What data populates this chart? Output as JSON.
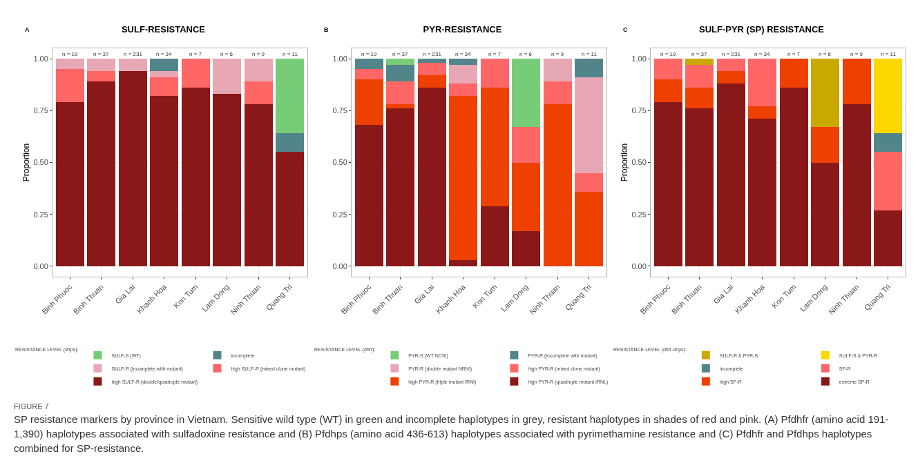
{
  "chart_data": [
    {
      "type": "bar",
      "stacked": true,
      "title": "SULF-RESISTANCE",
      "ylabel": "Proportion",
      "legend_title": "RESISTANCE LEVEL (dhps):",
      "legend": "bottom",
      "grid": true,
      "categories": [
        "Binh Phuoc",
        "Binh Thuan",
        "Gia Lai",
        "Khanh Hoa",
        "Kon Tum",
        "Lam Dong",
        "Ninh Thuan",
        "Quang Tri"
      ],
      "ylim": [
        -0.05,
        1.05
      ],
      "yticks": [
        {
          "value": 0,
          "label": "0.00"
        },
        {
          "value": 0.25,
          "label": "0.25"
        },
        {
          "value": 0.5,
          "label": "0.50"
        },
        {
          "value": 0.75,
          "label": "0.75"
        },
        {
          "value": 1,
          "label": "1.00"
        }
      ],
      "series": [
        {
          "name": "high SULF-R (double/quadruple mutant)",
          "color": "#8b1818",
          "values": [
            0.79,
            0.89,
            0.94,
            0.82,
            0.86,
            0.83,
            0.78,
            0.55
          ]
        },
        {
          "name": "high SULF-R (mixed clone mutant)",
          "color": "#ff6666",
          "values": [
            0.16,
            0.05,
            0,
            0.09,
            0.14,
            0,
            0.11,
            0
          ]
        },
        {
          "name": "SULF-R (incomplete with mutant)",
          "color": "#e8a7b5",
          "values": [
            0.05,
            0.06,
            0.06,
            0.03,
            0,
            0.17,
            0.11,
            0
          ]
        },
        {
          "name": "incomplete",
          "color": "#52858a",
          "values": [
            0,
            0,
            0,
            0.06,
            0,
            0,
            0,
            0.09
          ]
        },
        {
          "name": "SULF-S (WT)",
          "color": "#77cc77",
          "values": [
            0,
            0,
            0,
            0,
            0,
            0,
            0,
            0.36
          ]
        }
      ],
      "annotations": [
        "A",
        {
          "text": "n = 19",
          "x": "Binh Phuoc",
          "y": 1
        },
        {
          "text": "n = 37",
          "x": "Binh Thuan",
          "y": 1
        },
        {
          "text": "n = 231",
          "x": "Gia Lai",
          "y": 1
        },
        {
          "text": "n = 34",
          "x": "Khanh Hoa",
          "y": 1
        },
        {
          "text": "n = 7",
          "x": "Kon Tum",
          "y": 1
        },
        {
          "text": "n = 6",
          "x": "Lam Dong",
          "y": 1
        },
        {
          "text": "n = 9",
          "x": "Ninh Thuan",
          "y": 1
        },
        {
          "text": "n = 11",
          "x": "Quang Tri",
          "y": 1
        },
        "FIGURE 7",
        "SP resistance markers by province in Vietnam. Sensitive wild type (WT) in green and incomplete haplotypes in grey, resistant haplotypes in shades of red and pink. (A) Pfdhfr (amino acid 191-1,390) haplotypes associated with sulfadoxine resistance and (B) Pfdhps (amino acid 436-613) haplotypes associated with pyrimethamine resistance and (C) Pfdhfr and Pfdhps haplotypes combined for SP-resistance."
      ]
    },
    {
      "type": "bar",
      "stacked": true,
      "title": "PYR-RESISTANCE",
      "legend_title": "RESISTANCE LEVEL (dhfr):",
      "legend": "bottom",
      "grid": true,
      "categories": [
        "Binh Phuoc",
        "Binh Thuan",
        "Gia Lai",
        "Khanh Hoa",
        "Kon Tum",
        "Lam Dong",
        "Ninh Thuan",
        "Quang Tri"
      ],
      "ylim": [
        -0.05,
        1.05
      ],
      "yticks": [
        {
          "value": 0,
          "label": "0.00"
        },
        {
          "value": 0.25,
          "label": "0.25"
        },
        {
          "value": 0.5,
          "label": "0.50"
        },
        {
          "value": 0.75,
          "label": "0.75"
        },
        {
          "value": 1,
          "label": "1.00"
        }
      ],
      "series": [
        {
          "name": "high PYR-R (quadruple mutant IRNL)",
          "color": "#8b1818",
          "values": [
            0.68,
            0.76,
            0.86,
            0.03,
            0.29,
            0.17,
            0,
            0
          ]
        },
        {
          "name": "high PYR-R (triple mutant IRNI)",
          "color": "#ee4000",
          "values": [
            0.22,
            0.02,
            0.06,
            0.79,
            0.57,
            0.33,
            0.78,
            0.36
          ]
        },
        {
          "name": "high PYR-R (mixed clone mutant)",
          "color": "#ff6666",
          "values": [
            0.05,
            0.11,
            0.06,
            0.06,
            0.14,
            0.17,
            0.11,
            0.09
          ]
        },
        {
          "name": "PYR-R (double mutant NRNI)",
          "color": "#e8a7b5",
          "values": [
            0,
            0,
            0,
            0.09,
            0,
            0,
            0.11,
            0.46
          ]
        },
        {
          "name": "PYR-R (incomplete with mutant)",
          "color": "#52858a",
          "values": [
            0.05,
            0.08,
            0.02,
            0.03,
            0,
            0,
            0,
            0.09
          ]
        },
        {
          "name": "PYR-S (WT NCSI)",
          "color": "#77cc77",
          "values": [
            0,
            0.03,
            0,
            0,
            0,
            0.33,
            0,
            0
          ]
        }
      ],
      "annotations": [
        "B",
        {
          "text": "n = 19",
          "x": "Binh Phuoc",
          "y": 1
        },
        {
          "text": "n = 37",
          "x": "Binh Thuan",
          "y": 1
        },
        {
          "text": "n = 231",
          "x": "Gia Lai",
          "y": 1
        },
        {
          "text": "n = 34",
          "x": "Khanh Hoa",
          "y": 1
        },
        {
          "text": "n = 7",
          "x": "Kon Tum",
          "y": 1
        },
        {
          "text": "n = 6",
          "x": "Lam Dong",
          "y": 1
        },
        {
          "text": "n = 9",
          "x": "Ninh Thuan",
          "y": 1
        },
        {
          "text": "n = 11",
          "x": "Quang Tri",
          "y": 1
        }
      ]
    },
    {
      "type": "bar",
      "stacked": true,
      "title": "SULF-PYR (SP) RESISTANCE",
      "ylabel": "Proportion",
      "legend_title": "RESISTANCE LEVEL (dhfr-dhps):",
      "legend": "bottom",
      "grid": true,
      "categories": [
        "Binh Phuoc",
        "Binh Thuan",
        "Gia Lai",
        "Khanh Hoa",
        "Kon Tum",
        "Lam Dong",
        "Ninh Thuan",
        "Quang Tri"
      ],
      "ylim": [
        -0.05,
        1.05
      ],
      "yticks": [
        {
          "value": 0,
          "label": "0.00"
        },
        {
          "value": 0.25,
          "label": "0.25"
        },
        {
          "value": 0.5,
          "label": "0.50"
        },
        {
          "value": 0.75,
          "label": "0.75"
        },
        {
          "value": 1,
          "label": "1.00"
        }
      ],
      "series": [
        {
          "name": "extreme SP-R",
          "color": "#8b1818",
          "values": [
            0.79,
            0.76,
            0.88,
            0.71,
            0.86,
            0.5,
            0.78,
            0.27
          ]
        },
        {
          "name": "high SP-R",
          "color": "#ee4000",
          "values": [
            0.11,
            0.1,
            0.06,
            0.06,
            0.14,
            0.17,
            0.22,
            0
          ]
        },
        {
          "name": "SP-R",
          "color": "#ff6666",
          "values": [
            0.1,
            0.11,
            0.06,
            0.23,
            0,
            0,
            0,
            0.28
          ]
        },
        {
          "name": "incomplete",
          "color": "#52858a",
          "values": [
            0,
            0,
            0,
            0,
            0,
            0,
            0,
            0.09
          ]
        },
        {
          "name": "SULF-S & PYR-R",
          "color": "#ffd700",
          "values": [
            0,
            0,
            0,
            0,
            0,
            0,
            0,
            0.36
          ]
        },
        {
          "name": "SULF-R & PYR-S",
          "color": "#c9a900",
          "values": [
            0,
            0.03,
            0,
            0,
            0,
            0.33,
            0,
            0
          ]
        }
      ],
      "annotations": [
        "C",
        {
          "text": "n = 19",
          "x": "Binh Phuoc",
          "y": 1
        },
        {
          "text": "n = 37",
          "x": "Binh Thuan",
          "y": 1
        },
        {
          "text": "n = 231",
          "x": "Gia Lai",
          "y": 1
        },
        {
          "text": "n = 34",
          "x": "Khanh Hoa",
          "y": 1
        },
        {
          "text": "n = 7",
          "x": "Kon Tum",
          "y": 1
        },
        {
          "text": "n = 6",
          "x": "Lam Dong",
          "y": 1
        },
        {
          "text": "n = 9",
          "x": "Ninh Thuan",
          "y": 1
        },
        {
          "text": "n = 11",
          "x": "Quang Tri",
          "y": 1
        }
      ]
    }
  ]
}
